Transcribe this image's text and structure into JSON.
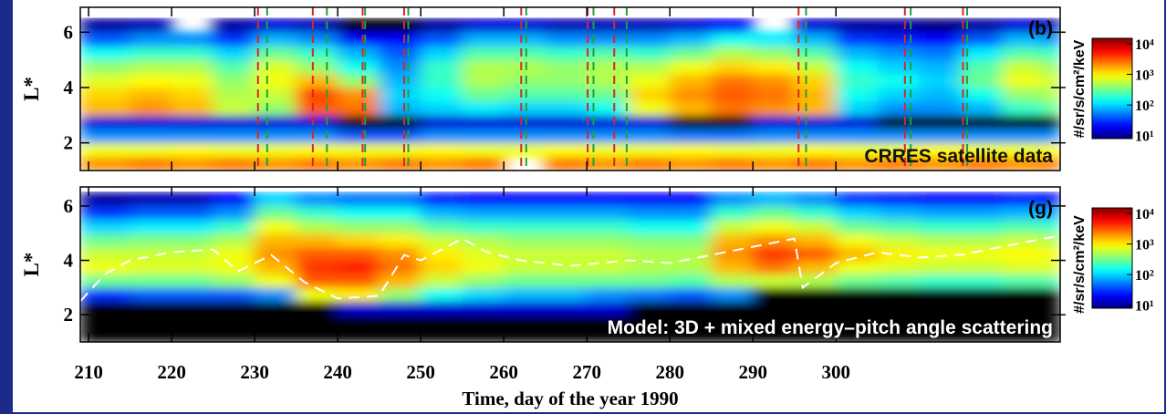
{
  "chart_data": [
    {
      "type": "heatmap",
      "panel_label": "(b)",
      "annotation": "CRRES satellite data",
      "annotation_color": "#111111",
      "ylabel": "L*",
      "ylim": [
        1,
        6.9
      ],
      "yticks": [
        2,
        4,
        6
      ],
      "xlim": [
        209,
        327
      ],
      "xticks": [
        210,
        220,
        230,
        240,
        250,
        260,
        270,
        280,
        290,
        300
      ],
      "show_xtick_labels": false,
      "xbins": [
        209,
        215,
        220,
        225,
        230,
        235,
        240,
        245,
        250,
        255,
        260,
        265,
        270,
        275,
        280,
        285,
        290,
        295,
        300,
        305,
        310,
        315,
        320,
        325,
        327
      ],
      "ybins": [
        1,
        1.5,
        2,
        2.5,
        3,
        3.5,
        4,
        4.5,
        5,
        5.5,
        6,
        6.5
      ],
      "values": [
        [
          2000,
          2500,
          2000,
          2500,
          2000,
          2500,
          2000,
          2500,
          2000,
          2500,
          null,
          2500,
          2000,
          2500,
          2000,
          2500,
          2000,
          2500,
          2000,
          2500,
          2000,
          2500,
          2000,
          2500
        ],
        [
          800,
          800,
          900,
          800,
          800,
          900,
          800,
          800,
          900,
          800,
          800,
          900,
          800,
          800,
          900,
          800,
          800,
          900,
          800,
          800,
          900,
          800,
          800,
          900
        ],
        [
          60,
          60,
          60,
          60,
          60,
          60,
          40,
          40,
          60,
          60,
          60,
          60,
          60,
          60,
          50,
          50,
          60,
          60,
          60,
          60,
          60,
          60,
          60,
          60
        ],
        [
          15,
          15,
          15,
          15,
          15,
          15,
          1,
          1,
          15,
          15,
          15,
          15,
          15,
          15,
          1,
          1,
          15,
          15,
          15,
          1,
          1,
          1,
          1,
          1
        ],
        [
          1500,
          2000,
          1500,
          600,
          400,
          3000,
          2500,
          80,
          100,
          120,
          100,
          100,
          150,
          800,
          1500,
          2500,
          2000,
          1500,
          100,
          60,
          60,
          80,
          200,
          300
        ],
        [
          1200,
          1500,
          1200,
          500,
          600,
          3500,
          2000,
          100,
          150,
          300,
          250,
          250,
          300,
          1200,
          2000,
          3000,
          2500,
          1500,
          150,
          100,
          80,
          150,
          400,
          500
        ],
        [
          700,
          900,
          800,
          400,
          800,
          1500,
          400,
          80,
          200,
          500,
          400,
          400,
          500,
          800,
          1500,
          2500,
          2000,
          1200,
          200,
          150,
          100,
          300,
          800,
          600
        ],
        [
          400,
          500,
          500,
          250,
          700,
          400,
          150,
          60,
          200,
          500,
          500,
          400,
          500,
          500,
          800,
          1200,
          1000,
          600,
          150,
          100,
          80,
          250,
          600,
          400
        ],
        [
          150,
          200,
          200,
          100,
          300,
          200,
          80,
          40,
          100,
          250,
          250,
          200,
          250,
          200,
          300,
          500,
          400,
          250,
          80,
          60,
          50,
          120,
          250,
          200
        ],
        [
          40,
          60,
          60,
          30,
          80,
          60,
          20,
          20,
          40,
          80,
          80,
          60,
          60,
          60,
          80,
          150,
          120,
          80,
          30,
          25,
          20,
          40,
          80,
          60
        ],
        [
          10,
          12,
          null,
          10,
          15,
          12,
          1,
          1,
          10,
          15,
          15,
          12,
          12,
          12,
          15,
          20,
          null,
          15,
          10,
          10,
          8,
          10,
          15,
          12
        ]
      ],
      "colormap": "jet",
      "log_color": true,
      "colorbar": {
        "lim": [
          8,
          15000
        ],
        "label": "#/sr/s/cm²/keV",
        "ticks": [
          {
            "value": 10,
            "label": "10¹"
          },
          {
            "value": 100,
            "label": "10²"
          },
          {
            "value": 1000,
            "label": "10³"
          },
          {
            "value": 10000,
            "label": "10⁴"
          }
        ]
      },
      "markers": [
        {
          "color": "#d8262c",
          "x": [
            230.4,
            237.0,
            243.0,
            248.0,
            262.1,
            270.1,
            273.3,
            295.5,
            308.3,
            315.3
          ]
        },
        {
          "color": "#22a03a",
          "x": [
            231.5,
            238.7,
            243.3,
            248.5,
            262.7,
            270.8,
            274.8,
            296.4,
            309.0,
            315.8
          ]
        }
      ]
    },
    {
      "type": "heatmap",
      "panel_label": "(g)",
      "annotation": "Model: 3D + mixed energy–pitch angle scattering",
      "annotation_color": "#ffffff",
      "ylabel": "L*",
      "ylim": [
        1,
        6.7
      ],
      "yticks": [
        2,
        4,
        6
      ],
      "xlim": [
        209,
        327
      ],
      "xticks": [
        210,
        220,
        230,
        240,
        250,
        260,
        270,
        280,
        290,
        300
      ],
      "show_xtick_labels": true,
      "xlabel": "Time, day of the year 1990",
      "xbins": [
        209,
        215,
        220,
        225,
        230,
        235,
        240,
        245,
        250,
        255,
        260,
        265,
        270,
        275,
        280,
        285,
        290,
        295,
        300,
        305,
        310,
        315,
        320,
        325,
        327
      ],
      "ybins": [
        1,
        1.5,
        2,
        2.5,
        3,
        3.5,
        4,
        4.5,
        5,
        5.5,
        6,
        6.5
      ],
      "values": [
        [
          1,
          1,
          1,
          1,
          1,
          1,
          1,
          1,
          1,
          1,
          1,
          1,
          1,
          1,
          1,
          1,
          1,
          1,
          1,
          1,
          1,
          1,
          1,
          1
        ],
        [
          1,
          1,
          1,
          1,
          1,
          1,
          1,
          1,
          1,
          1,
          1,
          1,
          1,
          1,
          1,
          1,
          1,
          1,
          1,
          1,
          1,
          1,
          1,
          1
        ],
        [
          1,
          1,
          1,
          1,
          1,
          1,
          15,
          15,
          15,
          15,
          15,
          15,
          15,
          1,
          1,
          1,
          1,
          1,
          1,
          1,
          1,
          1,
          1,
          1
        ],
        [
          30,
          40,
          40,
          40,
          60,
          800,
          1000,
          400,
          150,
          100,
          80,
          80,
          60,
          50,
          40,
          60,
          1,
          1,
          1,
          1,
          1,
          1,
          1,
          1
        ],
        [
          300,
          300,
          300,
          400,
          800,
          3000,
          3000,
          1500,
          600,
          400,
          300,
          300,
          300,
          300,
          250,
          500,
          600,
          500,
          300,
          250,
          200,
          200,
          250,
          250
        ],
        [
          800,
          700,
          700,
          800,
          1500,
          4000,
          5000,
          2500,
          1200,
          800,
          600,
          600,
          600,
          500,
          500,
          1500,
          2500,
          1500,
          800,
          700,
          600,
          600,
          700,
          700
        ],
        [
          600,
          600,
          600,
          800,
          2000,
          3000,
          3000,
          2000,
          1000,
          700,
          600,
          600,
          600,
          500,
          500,
          2000,
          4000,
          3000,
          1500,
          1000,
          800,
          800,
          900,
          800
        ],
        [
          300,
          350,
          350,
          500,
          1500,
          1500,
          1200,
          1000,
          600,
          500,
          400,
          400,
          400,
          350,
          350,
          1500,
          2000,
          1500,
          800,
          600,
          500,
          500,
          600,
          500
        ],
        [
          100,
          120,
          120,
          200,
          800,
          500,
          400,
          400,
          250,
          200,
          200,
          200,
          200,
          150,
          150,
          600,
          800,
          600,
          300,
          250,
          200,
          200,
          250,
          200
        ],
        [
          30,
          40,
          40,
          60,
          300,
          200,
          150,
          150,
          80,
          70,
          70,
          70,
          70,
          60,
          60,
          200,
          300,
          200,
          100,
          80,
          70,
          70,
          80,
          70
        ],
        [
          10,
          12,
          12,
          20,
          100,
          60,
          50,
          50,
          25,
          20,
          20,
          20,
          20,
          20,
          20,
          60,
          80,
          60,
          30,
          25,
          20,
          20,
          25,
          20
        ]
      ],
      "colormap": "jet",
      "log_color": true,
      "colorbar": {
        "lim": [
          8,
          15000
        ],
        "label": "#/sr/s/cm²/keV",
        "ticks": [
          {
            "value": 10,
            "label": "10¹"
          },
          {
            "value": 100,
            "label": "10²"
          },
          {
            "value": 1000,
            "label": "10³"
          },
          {
            "value": 10000,
            "label": "10⁴"
          }
        ]
      },
      "series": [
        {
          "color": "#ffffff",
          "dash": true,
          "x": [
            209,
            212,
            215,
            220,
            225,
            228,
            232,
            236,
            240,
            245,
            248,
            250,
            255,
            258,
            262,
            268,
            275,
            280,
            285,
            290,
            295,
            296,
            300,
            305,
            310,
            315,
            320,
            325,
            327
          ],
          "values": [
            2.5,
            3.5,
            4,
            4.3,
            4.4,
            3.6,
            4.2,
            3.2,
            2.6,
            2.7,
            4.2,
            4.0,
            4.8,
            4.3,
            4.0,
            3.8,
            4.0,
            3.9,
            4.2,
            4.5,
            4.8,
            3.0,
            3.9,
            4.3,
            4.1,
            4.2,
            4.5,
            4.8,
            4.9
          ]
        }
      ]
    }
  ]
}
